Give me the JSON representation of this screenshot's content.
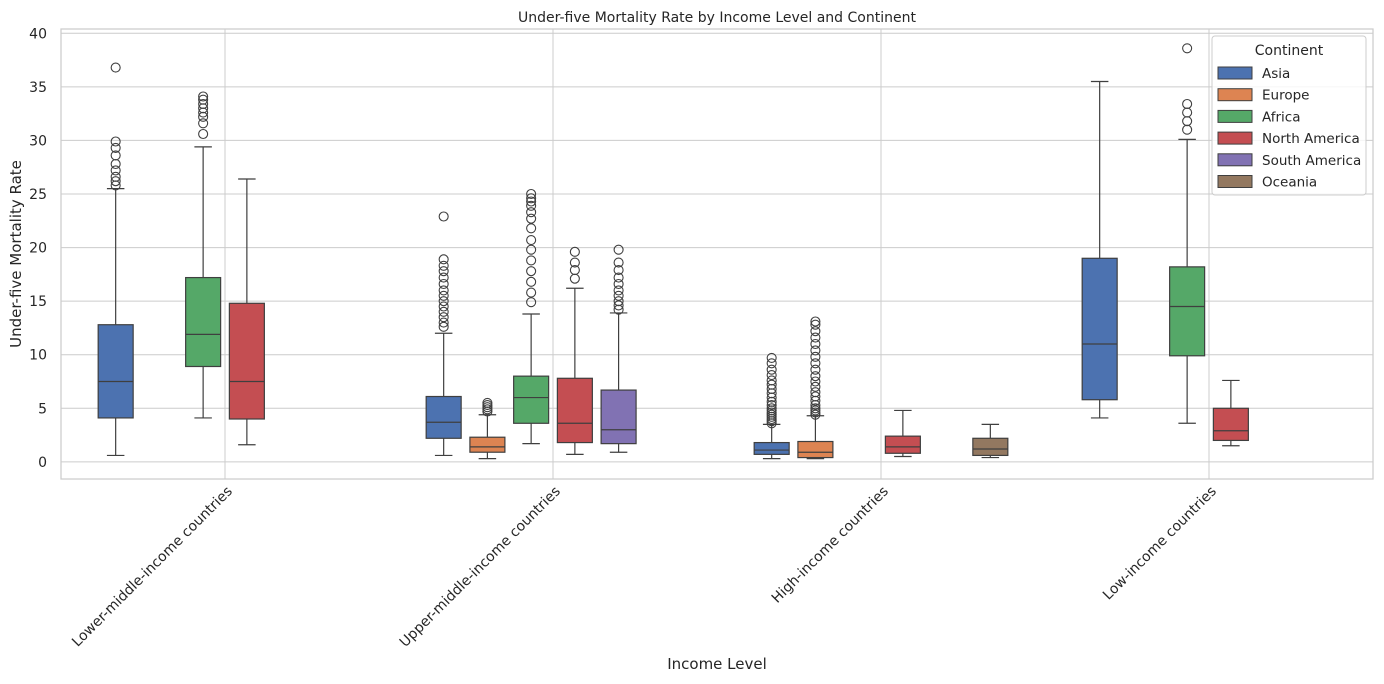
{
  "chart_data": {
    "type": "box",
    "title": "Under-five Mortality Rate by Income Level and Continent",
    "xlabel": "Income Level",
    "ylabel": "Under-five Mortality Rate",
    "ylim": [
      -1.6,
      40.4
    ],
    "yticks": [
      0,
      5,
      10,
      15,
      20,
      25,
      30,
      35,
      40
    ],
    "grid": true,
    "legend": {
      "title": "Continent",
      "placement": "top-right"
    },
    "categories": [
      "Lower-middle-income countries",
      "Upper-middle-income countries",
      "High-income countries",
      "Low-income countries"
    ],
    "series": [
      {
        "name": "Asia",
        "color": "#4c72b0",
        "boxes": [
          {
            "category": 0,
            "low": 0.6,
            "q1": 4.1,
            "median": 7.5,
            "q3": 12.8,
            "high": 25.5,
            "outliers": [
              25.8,
              26.2,
              26.6,
              27.2,
              27.8,
              28.6,
              29.3,
              29.9,
              36.8
            ]
          },
          {
            "category": 1,
            "low": 0.6,
            "q1": 2.2,
            "median": 3.7,
            "q3": 6.1,
            "high": 12.0,
            "outliers": [
              12.6,
              13.0,
              13.5,
              14.0,
              14.5,
              15.0,
              15.5,
              16.0,
              16.6,
              17.2,
              17.8,
              18.3,
              18.9,
              22.9
            ]
          },
          {
            "category": 2,
            "low": 0.3,
            "q1": 0.7,
            "median": 1.1,
            "q3": 1.8,
            "high": 3.5,
            "outliers": [
              3.6,
              3.8,
              4.0,
              4.2,
              4.4,
              4.6,
              4.8,
              5.0,
              5.3,
              5.6,
              6.0,
              6.4,
              6.8,
              7.2,
              7.6,
              8.1,
              8.6,
              9.2,
              9.7
            ]
          },
          {
            "category": 3,
            "low": 4.1,
            "q1": 5.8,
            "median": 11.0,
            "q3": 19.0,
            "high": 35.5,
            "outliers": []
          }
        ]
      },
      {
        "name": "Europe",
        "color": "#dd8452",
        "boxes": [
          {
            "category": 1,
            "low": 0.3,
            "q1": 0.9,
            "median": 1.4,
            "q3": 2.3,
            "high": 4.4,
            "outliers": [
              4.7,
              4.9,
              5.1,
              5.3,
              5.5
            ]
          },
          {
            "category": 2,
            "low": 0.3,
            "q1": 0.4,
            "median": 0.9,
            "q3": 1.9,
            "high": 4.3,
            "outliers": [
              4.4,
              4.6,
              4.8,
              5.0,
              5.3,
              5.7,
              6.1,
              6.5,
              7.0,
              7.5,
              8.0,
              8.6,
              9.2,
              9.8,
              10.4,
              11.0,
              11.6,
              12.2,
              12.8,
              13.1
            ]
          }
        ]
      },
      {
        "name": "Africa",
        "color": "#55a868",
        "boxes": [
          {
            "category": 0,
            "low": 4.1,
            "q1": 8.9,
            "median": 11.9,
            "q3": 17.2,
            "high": 29.4,
            "outliers": [
              30.6,
              31.6,
              32.2,
              32.6,
              33.0,
              33.4,
              33.8,
              34.1
            ]
          },
          {
            "category": 1,
            "low": 1.7,
            "q1": 3.6,
            "median": 6.0,
            "q3": 8.0,
            "high": 13.8,
            "outliers": [
              14.9,
              15.8,
              16.8,
              17.8,
              18.8,
              19.8,
              20.7,
              21.8,
              22.7,
              23.3,
              23.9,
              24.3,
              24.6,
              25.0
            ]
          },
          {
            "category": 3,
            "low": 3.6,
            "q1": 9.9,
            "median": 14.5,
            "q3": 18.2,
            "high": 30.1,
            "outliers": [
              31.0,
              31.8,
              32.6,
              33.4,
              38.6
            ]
          }
        ]
      },
      {
        "name": "North America",
        "color": "#c44e52",
        "boxes": [
          {
            "category": 0,
            "low": 1.6,
            "q1": 4.0,
            "median": 7.5,
            "q3": 14.8,
            "high": 26.4,
            "outliers": []
          },
          {
            "category": 1,
            "low": 0.7,
            "q1": 1.8,
            "median": 3.6,
            "q3": 7.8,
            "high": 16.2,
            "outliers": [
              17.1,
              17.9,
              18.6,
              19.6
            ]
          },
          {
            "category": 2,
            "low": 0.5,
            "q1": 0.8,
            "median": 1.4,
            "q3": 2.4,
            "high": 4.8,
            "outliers": []
          },
          {
            "category": 3,
            "low": 1.5,
            "q1": 2.0,
            "median": 2.9,
            "q3": 5.0,
            "high": 7.6,
            "outliers": []
          }
        ]
      },
      {
        "name": "South America",
        "color": "#8172b3",
        "boxes": [
          {
            "category": 1,
            "low": 0.9,
            "q1": 1.7,
            "median": 3.0,
            "q3": 6.7,
            "high": 13.9,
            "outliers": [
              14.2,
              14.6,
              15.0,
              15.5,
              16.0,
              16.6,
              17.2,
              17.9,
              18.6,
              19.8
            ]
          }
        ]
      },
      {
        "name": "Oceania",
        "color": "#937860",
        "boxes": [
          {
            "category": 2,
            "low": 0.4,
            "q1": 0.6,
            "median": 1.2,
            "q3": 2.2,
            "high": 3.5,
            "outliers": []
          }
        ]
      }
    ]
  }
}
